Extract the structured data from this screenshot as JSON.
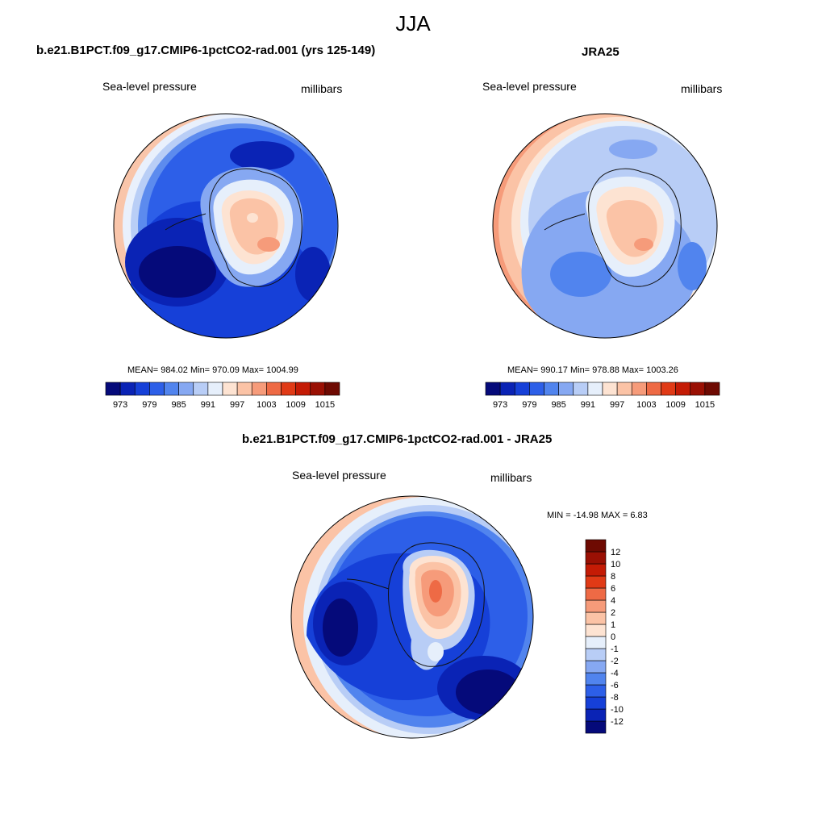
{
  "page": {
    "title": "JJA"
  },
  "chart_data": [
    {
      "type": "polar-contour",
      "title": "b.e21.B1PCT.f09_g17.CMIP6-1pctCO2-rad.001 (yrs 125-149)",
      "variable_label": "Sea-level pressure",
      "units_label": "millibars",
      "stats": {
        "mean": 984.02,
        "min": 970.09,
        "max": 1004.99
      },
      "stats_text": "MEAN= 984.02  Min= 970.09  Max= 1004.99",
      "colorbar": {
        "orientation": "horizontal",
        "levels": [
          973,
          976,
          979,
          982,
          985,
          988,
          991,
          994,
          997,
          1000,
          1003,
          1006,
          1009,
          1012,
          1015
        ],
        "tick_labels": [
          "973",
          "979",
          "985",
          "991",
          "997",
          "1003",
          "1009",
          "1015"
        ],
        "colors": [
          "#050a7a",
          "#0a23b5",
          "#1640d8",
          "#2d5fe8",
          "#5184ee",
          "#86a8f2",
          "#b8cdf6",
          "#e6effb",
          "#fde3d2",
          "#fbc3a6",
          "#f69b7a",
          "#ee6a45",
          "#e03a16",
          "#c41b05",
          "#9a1004",
          "#6e0a02"
        ]
      }
    },
    {
      "type": "polar-contour",
      "title": "JRA25",
      "variable_label": "Sea-level pressure",
      "units_label": "millibars",
      "stats": {
        "mean": 990.17,
        "min": 978.88,
        "max": 1003.26
      },
      "stats_text": "MEAN= 990.17  Min= 978.88  Max= 1003.26",
      "colorbar": {
        "orientation": "horizontal",
        "levels": [
          973,
          976,
          979,
          982,
          985,
          988,
          991,
          994,
          997,
          1000,
          1003,
          1006,
          1009,
          1012,
          1015
        ],
        "tick_labels": [
          "973",
          "979",
          "985",
          "991",
          "997",
          "1003",
          "1009",
          "1015"
        ],
        "colors": [
          "#050a7a",
          "#0a23b5",
          "#1640d8",
          "#2d5fe8",
          "#5184ee",
          "#86a8f2",
          "#b8cdf6",
          "#e6effb",
          "#fde3d2",
          "#fbc3a6",
          "#f69b7a",
          "#ee6a45",
          "#e03a16",
          "#c41b05",
          "#9a1004",
          "#6e0a02"
        ]
      }
    },
    {
      "type": "polar-contour",
      "title": "b.e21.B1PCT.f09_g17.CMIP6-1pctCO2-rad.001 - JRA25",
      "variable_label": "Sea-level pressure",
      "units_label": "millibars",
      "stats": {
        "min": -14.98,
        "max": 6.83
      },
      "stats_text": "MIN = -14.98 MAX =   6.83",
      "colorbar": {
        "orientation": "vertical",
        "levels": [
          -12,
          -10,
          -8,
          -6,
          -4,
          -2,
          -1,
          0,
          1,
          2,
          4,
          6,
          8,
          10,
          12
        ],
        "tick_labels": [
          "-12",
          "-10",
          "-8",
          "-6",
          "-4",
          "-2",
          "-1",
          "0",
          "1",
          "2",
          "4",
          "6",
          "8",
          "10",
          "12"
        ],
        "colors": [
          "#050a7a",
          "#0a23b5",
          "#1640d8",
          "#2d5fe8",
          "#5184ee",
          "#86a8f2",
          "#b8cdf6",
          "#e6effb",
          "#fde3d2",
          "#fbc3a6",
          "#f69b7a",
          "#ee6a45",
          "#e03a16",
          "#c41b05",
          "#9a1004",
          "#6e0a02"
        ]
      }
    }
  ]
}
